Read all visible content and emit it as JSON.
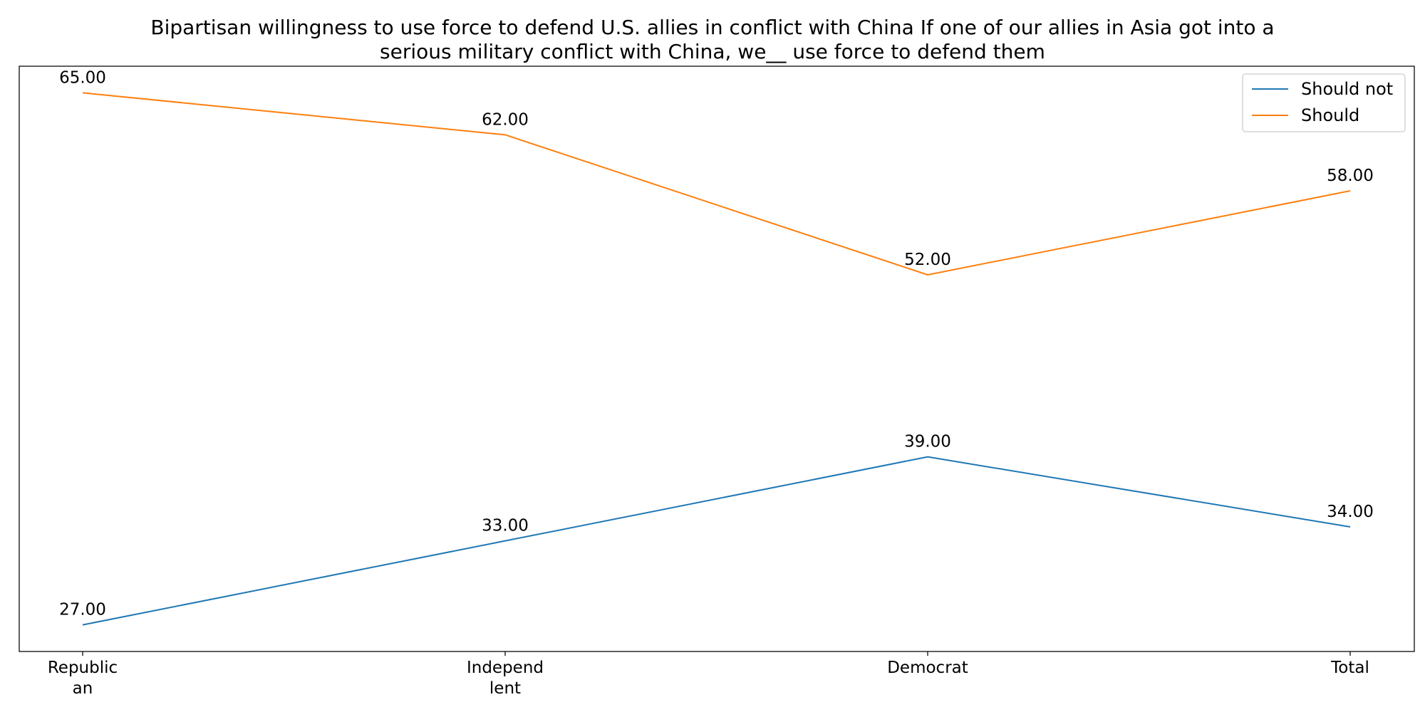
{
  "chart_data": {
    "type": "line",
    "title_lines": [
      "Bipartisan willingness to use force to defend U.S. allies in conflict with China If one of our allies in Asia got into a",
      "serious military conflict with China, we__ use force to defend them"
    ],
    "categories": [
      [
        "Republic",
        "an"
      ],
      [
        "Independ",
        "lent"
      ],
      [
        "Democrat"
      ],
      [
        "Total"
      ]
    ],
    "series": [
      {
        "name": "Should not",
        "values": [
          27,
          33,
          39,
          34
        ],
        "labels": [
          "27.00",
          "33.00",
          "39.00",
          "34.00"
        ],
        "color": "#1f77b4"
      },
      {
        "name": "Should",
        "values": [
          65,
          62,
          52,
          58
        ],
        "labels": [
          "65.00",
          "62.00",
          "52.00",
          "58.00"
        ],
        "color": "#ff7f0e"
      }
    ],
    "ylim": [
      25.1,
      66.9
    ],
    "xlabel": "",
    "ylabel": "",
    "y_ticks_visible": false,
    "grid": false,
    "legend": "upper right",
    "data_labels": true
  }
}
